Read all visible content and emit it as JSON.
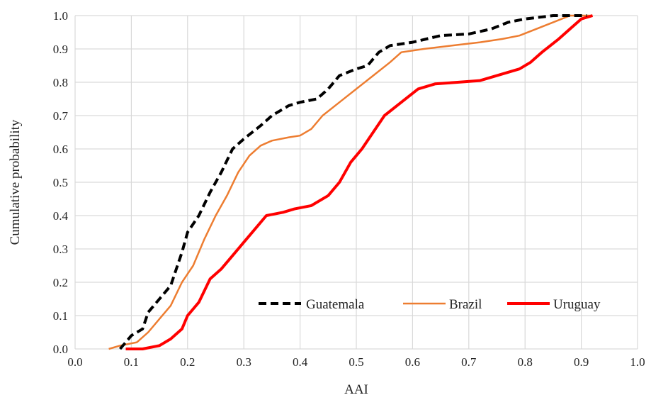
{
  "chart_data": {
    "type": "line",
    "xlabel": "AAI",
    "ylabel": "Cumulative probability",
    "xlim": [
      0.0,
      1.0
    ],
    "ylim": [
      0.0,
      1.0
    ],
    "xticks": [
      "0.0",
      "0.1",
      "0.2",
      "0.3",
      "0.4",
      "0.5",
      "0.6",
      "0.7",
      "0.8",
      "0.9",
      "1.0"
    ],
    "yticks": [
      "0.0",
      "0.1",
      "0.2",
      "0.3",
      "0.4",
      "0.5",
      "0.6",
      "0.7",
      "0.8",
      "0.9",
      "1.0"
    ],
    "grid": true,
    "legend_position": "bottom-right",
    "series": [
      {
        "name": "Guatemala",
        "color": "#000000",
        "dash": "dashed",
        "points": [
          [
            0.08,
            0.0
          ],
          [
            0.09,
            0.02
          ],
          [
            0.1,
            0.04
          ],
          [
            0.12,
            0.06
          ],
          [
            0.13,
            0.11
          ],
          [
            0.15,
            0.15
          ],
          [
            0.17,
            0.19
          ],
          [
            0.18,
            0.24
          ],
          [
            0.19,
            0.29
          ],
          [
            0.2,
            0.35
          ],
          [
            0.22,
            0.4
          ],
          [
            0.24,
            0.47
          ],
          [
            0.26,
            0.53
          ],
          [
            0.28,
            0.6
          ],
          [
            0.3,
            0.63
          ],
          [
            0.33,
            0.67
          ],
          [
            0.35,
            0.7
          ],
          [
            0.38,
            0.73
          ],
          [
            0.4,
            0.74
          ],
          [
            0.43,
            0.75
          ],
          [
            0.45,
            0.78
          ],
          [
            0.47,
            0.82
          ],
          [
            0.5,
            0.84
          ],
          [
            0.52,
            0.85
          ],
          [
            0.54,
            0.89
          ],
          [
            0.56,
            0.91
          ],
          [
            0.6,
            0.92
          ],
          [
            0.65,
            0.94
          ],
          [
            0.7,
            0.945
          ],
          [
            0.74,
            0.96
          ],
          [
            0.77,
            0.98
          ],
          [
            0.8,
            0.99
          ],
          [
            0.85,
            1.0
          ],
          [
            0.91,
            1.0
          ]
        ]
      },
      {
        "name": "Brazil",
        "color": "#ed7d31",
        "dash": "solid",
        "points": [
          [
            0.06,
            0.0
          ],
          [
            0.08,
            0.01
          ],
          [
            0.11,
            0.02
          ],
          [
            0.13,
            0.05
          ],
          [
            0.15,
            0.09
          ],
          [
            0.17,
            0.13
          ],
          [
            0.19,
            0.2
          ],
          [
            0.21,
            0.25
          ],
          [
            0.23,
            0.33
          ],
          [
            0.25,
            0.4
          ],
          [
            0.27,
            0.46
          ],
          [
            0.29,
            0.53
          ],
          [
            0.31,
            0.58
          ],
          [
            0.33,
            0.61
          ],
          [
            0.35,
            0.625
          ],
          [
            0.38,
            0.635
          ],
          [
            0.4,
            0.64
          ],
          [
            0.42,
            0.66
          ],
          [
            0.44,
            0.7
          ],
          [
            0.47,
            0.74
          ],
          [
            0.5,
            0.78
          ],
          [
            0.53,
            0.82
          ],
          [
            0.56,
            0.86
          ],
          [
            0.58,
            0.89
          ],
          [
            0.62,
            0.9
          ],
          [
            0.67,
            0.91
          ],
          [
            0.72,
            0.92
          ],
          [
            0.76,
            0.93
          ],
          [
            0.79,
            0.94
          ],
          [
            0.82,
            0.96
          ],
          [
            0.85,
            0.98
          ],
          [
            0.88,
            1.0
          ],
          [
            0.92,
            1.0
          ]
        ]
      },
      {
        "name": "Uruguay",
        "color": "#ff0000",
        "dash": "solid",
        "points": [
          [
            0.09,
            0.0
          ],
          [
            0.12,
            0.0
          ],
          [
            0.15,
            0.01
          ],
          [
            0.17,
            0.03
          ],
          [
            0.19,
            0.06
          ],
          [
            0.2,
            0.1
          ],
          [
            0.22,
            0.14
          ],
          [
            0.24,
            0.21
          ],
          [
            0.26,
            0.24
          ],
          [
            0.28,
            0.28
          ],
          [
            0.3,
            0.32
          ],
          [
            0.32,
            0.36
          ],
          [
            0.34,
            0.4
          ],
          [
            0.37,
            0.41
          ],
          [
            0.39,
            0.42
          ],
          [
            0.42,
            0.43
          ],
          [
            0.45,
            0.46
          ],
          [
            0.47,
            0.5
          ],
          [
            0.49,
            0.56
          ],
          [
            0.51,
            0.6
          ],
          [
            0.53,
            0.65
          ],
          [
            0.55,
            0.7
          ],
          [
            0.58,
            0.74
          ],
          [
            0.61,
            0.78
          ],
          [
            0.64,
            0.795
          ],
          [
            0.68,
            0.8
          ],
          [
            0.72,
            0.805
          ],
          [
            0.75,
            0.82
          ],
          [
            0.79,
            0.84
          ],
          [
            0.81,
            0.86
          ],
          [
            0.83,
            0.89
          ],
          [
            0.86,
            0.93
          ],
          [
            0.88,
            0.96
          ],
          [
            0.9,
            0.99
          ],
          [
            0.92,
            1.0
          ]
        ]
      }
    ]
  }
}
